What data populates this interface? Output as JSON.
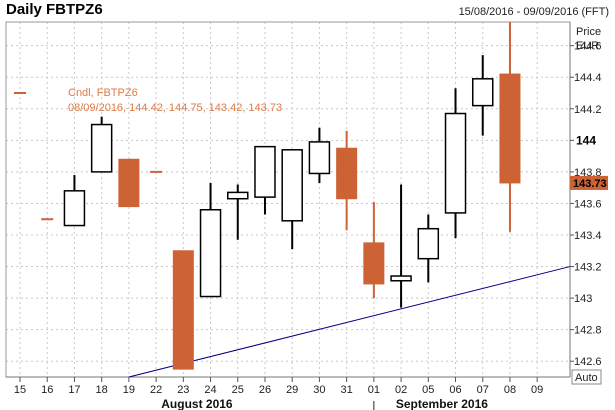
{
  "header": {
    "title": "Daily FBTPZ6",
    "date_range": "15/08/2016 - 09/09/2016 (FFT)"
  },
  "axis": {
    "price_label": "Price",
    "currency_label": "EUR",
    "scale_mode": "Auto",
    "current_value_label": "143.73"
  },
  "legend": {
    "line1": "Cndl, FBTPZ6",
    "line2": "08/09/2016, 144.42, 144.75, 143.42, 143.73"
  },
  "colors": {
    "up_fill": "#ffffff",
    "down_fill": "#cd6234",
    "outline": "#000000",
    "trendline": "#000080",
    "grid": "#c8c8c8",
    "legend_text": "#e07a44"
  },
  "chart_data": {
    "type": "candlestick",
    "ylim": [
      142.5,
      144.75
    ],
    "y_ticks": [
      "142.6",
      "142.8",
      "143",
      "143.2",
      "143.4",
      "143.6",
      "143.8",
      "144",
      "144.2",
      "144.4",
      "144.6"
    ],
    "y_tick_values": [
      142.6,
      142.8,
      143.0,
      143.2,
      143.4,
      143.6,
      143.8,
      144.0,
      144.2,
      144.4,
      144.6
    ],
    "bold_tick": "144",
    "x_labels": [
      "15",
      "16",
      "17",
      "18",
      "19",
      "22",
      "23",
      "24",
      "25",
      "26",
      "29",
      "30",
      "31",
      "01",
      "02",
      "05",
      "06",
      "07",
      "08",
      "09"
    ],
    "month_labels": [
      {
        "text": "August 2016",
        "index": 6.5
      },
      {
        "text": "September 2016",
        "index": 15.5
      }
    ],
    "month_separator_index": 13,
    "candles": [
      {
        "date": "15",
        "open": 144.3,
        "high": 144.3,
        "low": 144.3,
        "close": 144.3
      },
      {
        "date": "16",
        "open": 143.5,
        "high": 143.5,
        "low": 143.5,
        "close": 143.5
      },
      {
        "date": "17",
        "open": 143.46,
        "high": 143.78,
        "low": 143.46,
        "close": 143.68
      },
      {
        "date": "18",
        "open": 143.8,
        "high": 144.15,
        "low": 143.8,
        "close": 144.1
      },
      {
        "date": "19",
        "open": 143.88,
        "high": 143.88,
        "low": 143.58,
        "close": 143.58
      },
      {
        "date": "22",
        "open": 143.8,
        "high": 143.8,
        "low": 143.8,
        "close": 143.8
      },
      {
        "date": "23",
        "open": 143.3,
        "high": 143.3,
        "low": 142.55,
        "close": 142.55
      },
      {
        "date": "24",
        "open": 143.01,
        "high": 143.73,
        "low": 143.01,
        "close": 143.56
      },
      {
        "date": "25",
        "open": 143.63,
        "high": 143.72,
        "low": 143.37,
        "close": 143.67
      },
      {
        "date": "26",
        "open": 143.64,
        "high": 143.96,
        "low": 143.53,
        "close": 143.96
      },
      {
        "date": "29",
        "open": 143.49,
        "high": 143.94,
        "low": 143.31,
        "close": 143.94
      },
      {
        "date": "30",
        "open": 143.79,
        "high": 144.08,
        "low": 143.73,
        "close": 143.99
      },
      {
        "date": "31",
        "open": 143.95,
        "high": 144.06,
        "low": 143.43,
        "close": 143.63
      },
      {
        "date": "01",
        "open": 143.35,
        "high": 143.61,
        "low": 143.0,
        "close": 143.09
      },
      {
        "date": "02",
        "open": 143.11,
        "high": 143.72,
        "low": 142.94,
        "close": 143.14
      },
      {
        "date": "05",
        "open": 143.25,
        "high": 143.53,
        "low": 143.1,
        "close": 143.44
      },
      {
        "date": "06",
        "open": 143.54,
        "high": 144.33,
        "low": 143.38,
        "close": 144.17
      },
      {
        "date": "07",
        "open": 144.22,
        "high": 144.54,
        "low": 144.03,
        "close": 144.39
      },
      {
        "date": "08",
        "open": 144.42,
        "high": 144.75,
        "low": 143.42,
        "close": 143.73
      }
    ],
    "trendline": {
      "start": {
        "date": "19",
        "value": 142.5
      },
      "end": {
        "date": "09",
        "value": 143.2
      }
    }
  }
}
